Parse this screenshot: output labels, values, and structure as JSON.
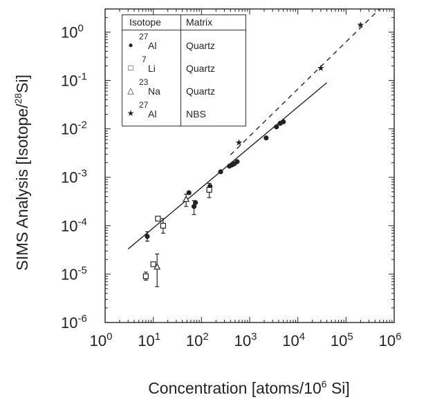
{
  "chart_data": {
    "type": "scatter",
    "xscale": "log",
    "yscale": "log",
    "xlim": [
      1,
      1000000
    ],
    "ylim": [
      1e-06,
      3
    ],
    "x_ticks": [
      {
        "mant": "10",
        "exp": "0"
      },
      {
        "mant": "10",
        "exp": "1"
      },
      {
        "mant": "10",
        "exp": "2"
      },
      {
        "mant": "10",
        "exp": "3"
      },
      {
        "mant": "10",
        "exp": "4"
      },
      {
        "mant": "10",
        "exp": "5"
      },
      {
        "mant": "10",
        "exp": "6"
      }
    ],
    "y_ticks": [
      {
        "mant": "10",
        "exp": "-6"
      },
      {
        "mant": "10",
        "exp": "-5"
      },
      {
        "mant": "10",
        "exp": "-4"
      },
      {
        "mant": "10",
        "exp": "-3"
      },
      {
        "mant": "10",
        "exp": "-2"
      },
      {
        "mant": "10",
        "exp": "-1"
      },
      {
        "mant": "10",
        "exp": "0"
      }
    ],
    "xlabel": {
      "text": "Concentration [atoms/10",
      "sup": "6",
      "end": " Si]"
    },
    "ylabel": {
      "text": "SIMS Analysis [Isotope/",
      "sup": "28",
      "end": "Si]"
    },
    "legend": {
      "position": "top-left",
      "col_isotope": "Isotope",
      "col_matrix": "Matrix",
      "entries": [
        {
          "mass": "27",
          "element": "Al",
          "matrix": "Quartz",
          "marker": "filled-circle",
          "symbol": "●"
        },
        {
          "mass": "7",
          "element": "Li",
          "matrix": "Quartz",
          "marker": "open-square",
          "symbol": "□"
        },
        {
          "mass": "23",
          "element": "Na",
          "matrix": "Quartz",
          "marker": "open-triangle",
          "symbol": "△"
        },
        {
          "mass": "27",
          "element": "Al",
          "matrix": "NBS",
          "marker": "star",
          "symbol": "★"
        }
      ]
    },
    "series": [
      {
        "name": "27Al Quartz",
        "marker": "filled-circle",
        "points": [
          {
            "x": 7.5,
            "y": 6e-05,
            "ylo": 4.8e-05,
            "yhi": 7.5e-05
          },
          {
            "x": 55,
            "y": 0.00048
          },
          {
            "x": 70,
            "y": 0.00025,
            "ylo": 0.00017,
            "yhi": 0.00033
          },
          {
            "x": 75,
            "y": 0.0003
          },
          {
            "x": 150,
            "y": 0.00065
          },
          {
            "x": 250,
            "y": 0.0013
          },
          {
            "x": 380,
            "y": 0.0017
          },
          {
            "x": 430,
            "y": 0.0018
          },
          {
            "x": 480,
            "y": 0.0019
          },
          {
            "x": 550,
            "y": 0.0021
          },
          {
            "x": 2200,
            "y": 0.0065
          },
          {
            "x": 3600,
            "y": 0.011
          },
          {
            "x": 4300,
            "y": 0.013
          },
          {
            "x": 5000,
            "y": 0.014
          }
        ]
      },
      {
        "name": "7Li Quartz",
        "marker": "open-square",
        "points": [
          {
            "x": 7,
            "y": 9e-06,
            "ylo": 7.5e-06,
            "yhi": 1.1e-05
          },
          {
            "x": 10,
            "y": 1.6e-05
          },
          {
            "x": 12.5,
            "y": 0.00014
          },
          {
            "x": 16,
            "y": 0.0001,
            "ylo": 7e-05,
            "yhi": 0.00014
          },
          {
            "x": 145,
            "y": 0.00055,
            "ylo": 0.00038,
            "yhi": 0.00075
          }
        ]
      },
      {
        "name": "23Na Quartz",
        "marker": "open-triangle",
        "points": [
          {
            "x": 12,
            "y": 1.4e-05,
            "ylo": 5.5e-06,
            "yhi": 2.6e-05
          },
          {
            "x": 48,
            "y": 0.00035,
            "ylo": 0.00025,
            "yhi": 0.00045
          }
        ]
      },
      {
        "name": "27Al NBS",
        "marker": "star",
        "points": [
          {
            "x": 600,
            "y": 0.0052
          },
          {
            "x": 30000,
            "y": 0.18
          },
          {
            "x": 200000,
            "y": 1.4
          }
        ]
      }
    ],
    "fit_lines": [
      {
        "style": "solid",
        "from": {
          "x": 3,
          "y": 3.3e-05
        },
        "to": {
          "x": 40000,
          "y": 0.09
        }
      },
      {
        "style": "dashed",
        "from": {
          "x": 400,
          "y": 0.0029
        },
        "to": {
          "x": 500000,
          "y": 3
        }
      }
    ]
  }
}
